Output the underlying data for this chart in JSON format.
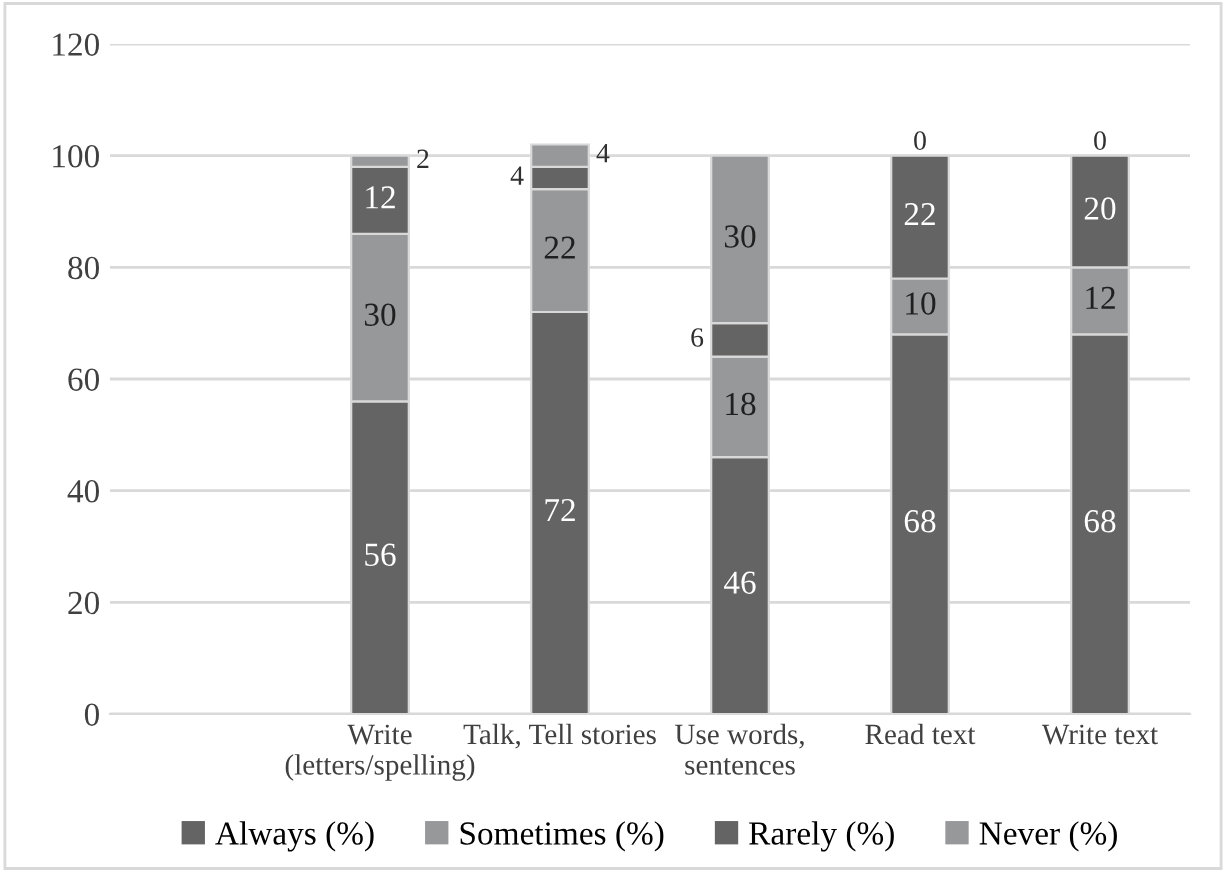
{
  "chart_data": {
    "type": "bar",
    "stacked": true,
    "categories": [
      null,
      "Write\n(letters/spelling)",
      "Talk, Tell stories",
      "Use words,\nsentences",
      "Read text",
      "Write text"
    ],
    "series": [
      {
        "name": "Always (%)",
        "color": "#646464",
        "values": [
          null,
          56,
          72,
          46,
          68,
          68
        ]
      },
      {
        "name": "Sometimes (%)",
        "color": "#97989a",
        "values": [
          null,
          30,
          22,
          18,
          10,
          12
        ]
      },
      {
        "name": "Rarely (%)",
        "color": "#646464",
        "values": [
          null,
          12,
          4,
          6,
          22,
          20
        ]
      },
      {
        "name": "Never (%)",
        "color": "#97989a",
        "values": [
          null,
          2,
          4,
          30,
          0,
          0
        ]
      }
    ],
    "ylim": [
      0,
      120
    ],
    "yticks": [
      0,
      20,
      40,
      60,
      80,
      100,
      120
    ],
    "grid": "y",
    "legend": "bottom",
    "data_labels": true
  }
}
